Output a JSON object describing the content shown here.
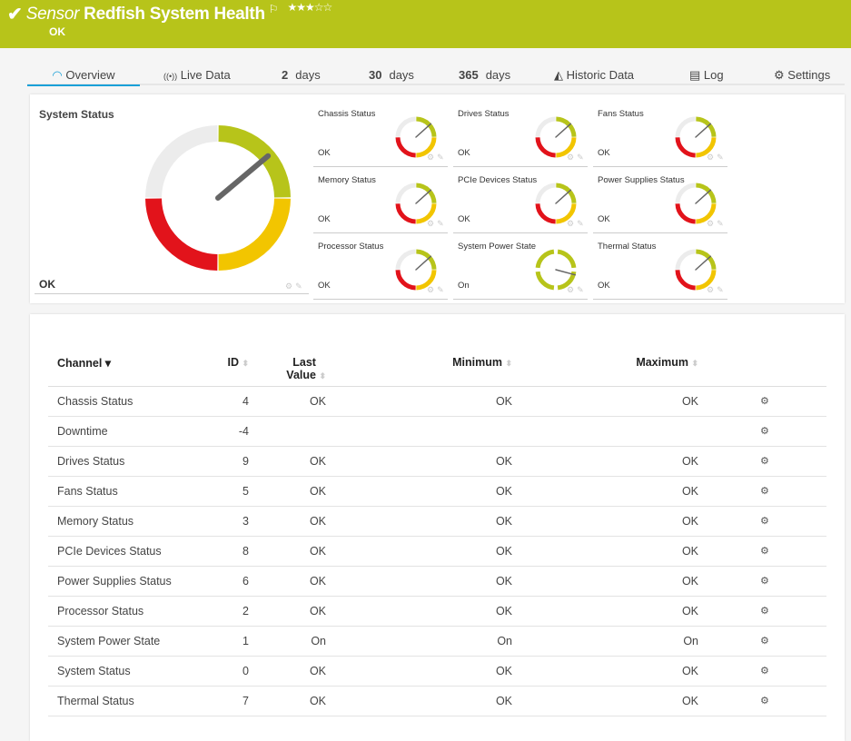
{
  "header": {
    "prefix": "Sensor",
    "title": "Redfish System Health",
    "status": "OK",
    "stars": "★★★☆☆",
    "color": "#b7c41a"
  },
  "tabs": [
    {
      "label": "Overview",
      "icon": "gauge-icon"
    },
    {
      "label": "Live Data",
      "icon": "broadcast-icon"
    },
    {
      "num": "2",
      "label": "days"
    },
    {
      "num": "30",
      "label": "days"
    },
    {
      "num": "365",
      "label": "days"
    },
    {
      "label": "Historic Data",
      "icon": "chart-icon"
    },
    {
      "label": "Log",
      "icon": "log-icon"
    },
    {
      "label": "Settings",
      "icon": "gear-icon"
    }
  ],
  "system": {
    "title": "System Status",
    "value": "OK"
  },
  "gauges": [
    {
      "name": "Chassis Status",
      "value": "OK"
    },
    {
      "name": "Drives Status",
      "value": "OK"
    },
    {
      "name": "Fans Status",
      "value": "OK"
    },
    {
      "name": "Memory Status",
      "value": "OK"
    },
    {
      "name": "PCIe Devices Status",
      "value": "OK"
    },
    {
      "name": "Power Supplies Status",
      "value": "OK"
    },
    {
      "name": "Processor Status",
      "value": "OK"
    },
    {
      "name": "System Power State",
      "value": "On"
    },
    {
      "name": "Thermal Status",
      "value": "OK"
    }
  ],
  "colors": {
    "ok": "#b7c41a",
    "warning": "#f2c500",
    "error": "#e2131b",
    "neutral": "#ececec"
  },
  "table": {
    "headers": {
      "channel": "Channel",
      "id": "ID",
      "last": "Last Value",
      "min": "Minimum",
      "max": "Maximum"
    },
    "rows": [
      {
        "channel": "Chassis Status",
        "id": "4",
        "last": "OK",
        "min": "OK",
        "max": "OK"
      },
      {
        "channel": "Downtime",
        "id": "-4",
        "last": "",
        "min": "",
        "max": ""
      },
      {
        "channel": "Drives Status",
        "id": "9",
        "last": "OK",
        "min": "OK",
        "max": "OK"
      },
      {
        "channel": "Fans Status",
        "id": "5",
        "last": "OK",
        "min": "OK",
        "max": "OK"
      },
      {
        "channel": "Memory Status",
        "id": "3",
        "last": "OK",
        "min": "OK",
        "max": "OK"
      },
      {
        "channel": "PCIe Devices Status",
        "id": "8",
        "last": "OK",
        "min": "OK",
        "max": "OK"
      },
      {
        "channel": "Power Supplies Status",
        "id": "6",
        "last": "OK",
        "min": "OK",
        "max": "OK"
      },
      {
        "channel": "Processor Status",
        "id": "2",
        "last": "OK",
        "min": "OK",
        "max": "OK"
      },
      {
        "channel": "System Power State",
        "id": "1",
        "last": "On",
        "min": "On",
        "max": "On"
      },
      {
        "channel": "System Status",
        "id": "0",
        "last": "OK",
        "min": "OK",
        "max": "OK"
      },
      {
        "channel": "Thermal Status",
        "id": "7",
        "last": "OK",
        "min": "OK",
        "max": "OK"
      }
    ]
  }
}
